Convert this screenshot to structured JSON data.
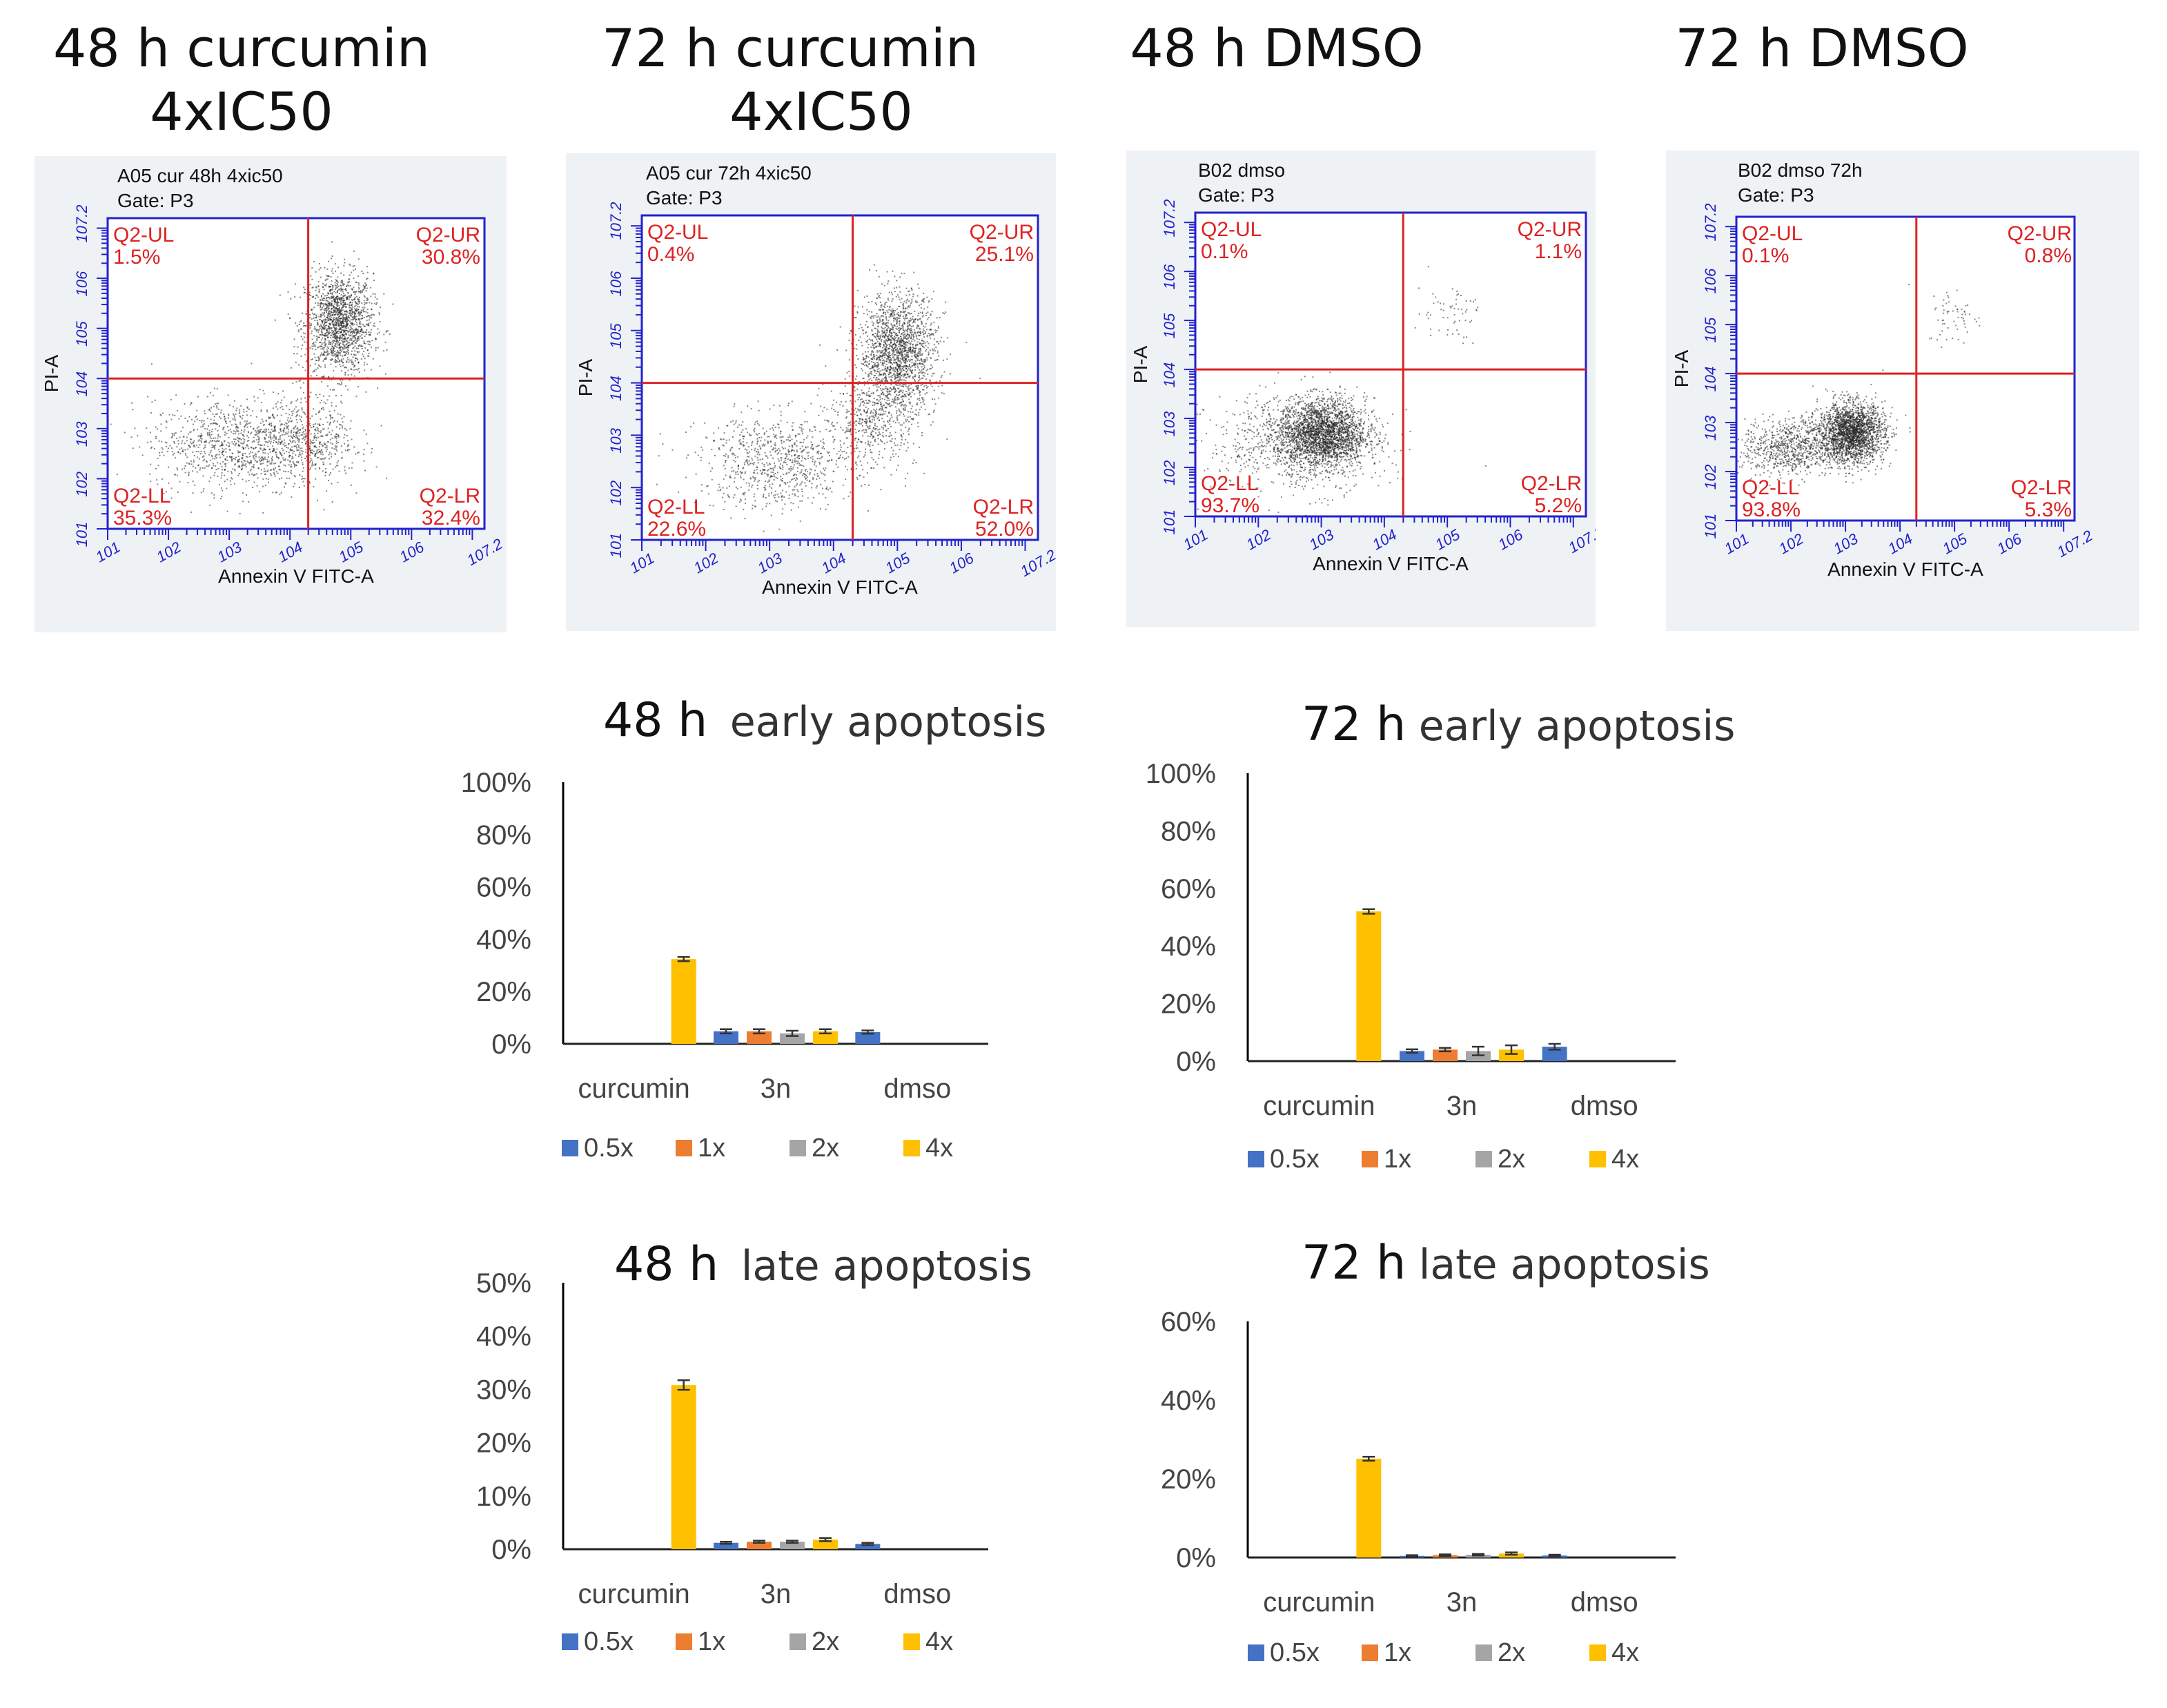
{
  "flow_panels": [
    {
      "header_line1": "48 h  curcumin",
      "header_line2": "4xIC50",
      "sample": "A05 cur 48h 4xic50",
      "gate": "Gate: P3",
      "xlabel": "Annexin V FITC-A",
      "ylabel": "PI-A",
      "quadrants": {
        "ul": {
          "label": "Q2-UL",
          "value": "1.5%"
        },
        "ur": {
          "label": "Q2-UR",
          "value": "30.8%"
        },
        "ll": {
          "label": "Q2-LL",
          "value": "35.3%"
        },
        "lr": {
          "label": "Q2-LR",
          "value": "32.4%"
        }
      },
      "gate_x_decade": 4.3,
      "gate_y_decade": 4.0,
      "populations": [
        {
          "cx": 4.8,
          "cy": 5.1,
          "sx": 0.28,
          "sy": 0.5,
          "n": 1600
        },
        {
          "cx": 3.1,
          "cy": 2.7,
          "sx": 0.7,
          "sy": 0.45,
          "n": 1000
        },
        {
          "cx": 4.3,
          "cy": 2.8,
          "sx": 0.4,
          "sy": 0.45,
          "n": 500
        }
      ]
    },
    {
      "header_line1": "72 h curcumin",
      "header_line2": "4xIC50",
      "sample": "A05 cur 72h 4xic50",
      "gate": "Gate: P3",
      "xlabel": "Annexin V FITC-A",
      "ylabel": "PI-A",
      "quadrants": {
        "ul": {
          "label": "Q2-UL",
          "value": "0.4%"
        },
        "ur": {
          "label": "Q2-UR",
          "value": "25.1%"
        },
        "ll": {
          "label": "Q2-LL",
          "value": "22.6%"
        },
        "lr": {
          "label": "Q2-LR",
          "value": "52.0%"
        }
      },
      "gate_x_decade": 4.3,
      "gate_y_decade": 4.0,
      "populations": [
        {
          "cx": 5.0,
          "cy": 4.6,
          "sx": 0.3,
          "sy": 0.55,
          "n": 1700
        },
        {
          "cx": 3.1,
          "cy": 2.5,
          "sx": 0.6,
          "sy": 0.45,
          "n": 800
        },
        {
          "cx": 4.6,
          "cy": 3.3,
          "sx": 0.35,
          "sy": 0.45,
          "n": 500
        }
      ]
    },
    {
      "header_line1": "48 h DMSO",
      "header_line2": "",
      "sample": "B02 dmso",
      "gate": "Gate: P3",
      "xlabel": "Annexin V FITC-A",
      "ylabel": "PI-A",
      "quadrants": {
        "ul": {
          "label": "Q2-UL",
          "value": "0.1%"
        },
        "ur": {
          "label": "Q2-UR",
          "value": "1.1%"
        },
        "ll": {
          "label": "Q2-LL",
          "value": "93.7%"
        },
        "lr": {
          "label": "Q2-LR",
          "value": "5.2%"
        }
      },
      "gate_x_decade": 4.3,
      "gate_y_decade": 4.0,
      "populations": [
        {
          "cx": 3.0,
          "cy": 2.7,
          "sx": 0.35,
          "sy": 0.35,
          "n": 2400
        },
        {
          "cx": 2.6,
          "cy": 2.5,
          "sx": 0.7,
          "sy": 0.5,
          "n": 700
        },
        {
          "cx": 5.0,
          "cy": 5.2,
          "sx": 0.25,
          "sy": 0.3,
          "n": 60
        }
      ]
    },
    {
      "header_line1": "72 h  DMSO",
      "header_line2": "",
      "sample": "B02 dmso 72h",
      "gate": "Gate: P3",
      "xlabel": "Annexin V FITC-A",
      "ylabel": "PI-A",
      "quadrants": {
        "ul": {
          "label": "Q2-UL",
          "value": "0.1%"
        },
        "ur": {
          "label": "Q2-UR",
          "value": "0.8%"
        },
        "ll": {
          "label": "Q2-LL",
          "value": "93.8%"
        },
        "lr": {
          "label": "Q2-LR",
          "value": "5.3%"
        }
      },
      "gate_x_decade": 4.3,
      "gate_y_decade": 4.0,
      "populations": [
        {
          "cx": 3.1,
          "cy": 2.8,
          "sx": 0.3,
          "sy": 0.3,
          "n": 2200
        },
        {
          "cx": 2.0,
          "cy": 2.5,
          "sx": 0.45,
          "sy": 0.3,
          "n": 800
        },
        {
          "cx": 5.0,
          "cy": 5.2,
          "sx": 0.25,
          "sy": 0.3,
          "n": 60
        }
      ]
    }
  ],
  "flow_axis": {
    "min": 1,
    "max": 7.2,
    "ticks": [
      "1",
      "2",
      "3",
      "4",
      "5",
      "6",
      "7.2"
    ]
  },
  "colors": {
    "flow_axis": "#2222cc",
    "flow_gate": "#dd2222",
    "flow_text": "#dd2222",
    "flow_panel_bg": "#eef2f4",
    "series": [
      "#4472c4",
      "#ed7d31",
      "#a5a5a5",
      "#ffc000"
    ]
  },
  "chart_data": [
    {
      "type": "bar",
      "heading": "48 h",
      "subtitle": "early apoptosis",
      "categories": [
        "curcumin",
        "3n",
        "dmso"
      ],
      "series": [
        {
          "name": "0.5x",
          "values": [
            null,
            4.8,
            4.5
          ]
        },
        {
          "name": "1x",
          "values": [
            null,
            4.8,
            null
          ]
        },
        {
          "name": "2x",
          "values": [
            null,
            4.0,
            null
          ]
        },
        {
          "name": "4x",
          "values": [
            32.4,
            4.8,
            null
          ]
        }
      ],
      "errors": [
        [
          null,
          0.8,
          0.6
        ],
        [
          null,
          0.8,
          null
        ],
        [
          null,
          1.0,
          null
        ],
        [
          0.8,
          0.8,
          null
        ]
      ],
      "ylim": [
        0,
        100
      ],
      "yticks": [
        0,
        20,
        40,
        60,
        80,
        100
      ],
      "ytick_labels": [
        "0%",
        "20%",
        "40%",
        "60%",
        "80%",
        "100%"
      ],
      "legend_position": "bottom"
    },
    {
      "type": "bar",
      "heading": "72 h",
      "subtitle": "early apoptosis",
      "categories": [
        "curcumin",
        "3n",
        "dmso"
      ],
      "series": [
        {
          "name": "0.5x",
          "values": [
            null,
            3.5,
            5.0
          ]
        },
        {
          "name": "1x",
          "values": [
            null,
            4.0,
            null
          ]
        },
        {
          "name": "2x",
          "values": [
            null,
            3.5,
            null
          ]
        },
        {
          "name": "4x",
          "values": [
            52.0,
            4.0,
            null
          ]
        }
      ],
      "errors": [
        [
          null,
          0.6,
          1.0
        ],
        [
          null,
          0.6,
          null
        ],
        [
          null,
          1.5,
          null
        ],
        [
          0.8,
          1.5,
          null
        ]
      ],
      "ylim": [
        0,
        100
      ],
      "yticks": [
        0,
        20,
        40,
        60,
        80,
        100
      ],
      "ytick_labels": [
        "0%",
        "20%",
        "40%",
        "60%",
        "80%",
        "100%"
      ],
      "legend_position": "bottom"
    },
    {
      "type": "bar",
      "heading": "48 h",
      "subtitle": "late apoptosis",
      "categories": [
        "curcumin",
        "3n",
        "dmso"
      ],
      "series": [
        {
          "name": "0.5x",
          "values": [
            null,
            1.2,
            1.0
          ]
        },
        {
          "name": "1x",
          "values": [
            null,
            1.4,
            null
          ]
        },
        {
          "name": "2x",
          "values": [
            null,
            1.4,
            null
          ]
        },
        {
          "name": "4x",
          "values": [
            30.8,
            1.8,
            null
          ]
        }
      ],
      "errors": [
        [
          null,
          0.2,
          0.2
        ],
        [
          null,
          0.2,
          null
        ],
        [
          null,
          0.2,
          null
        ],
        [
          0.9,
          0.3,
          null
        ]
      ],
      "ylim": [
        0,
        50
      ],
      "yticks": [
        0,
        10,
        20,
        30,
        40,
        50
      ],
      "ytick_labels": [
        "0%",
        "10%",
        "20%",
        "30%",
        "40%",
        "50%"
      ],
      "legend_position": "bottom"
    },
    {
      "type": "bar",
      "heading": "72 h",
      "subtitle": "late apoptosis",
      "categories": [
        "curcumin",
        "3n",
        "dmso"
      ],
      "series": [
        {
          "name": "0.5x",
          "values": [
            null,
            0.4,
            0.5
          ]
        },
        {
          "name": "1x",
          "values": [
            null,
            0.6,
            null
          ]
        },
        {
          "name": "2x",
          "values": [
            null,
            0.7,
            null
          ]
        },
        {
          "name": "4x",
          "values": [
            25.1,
            1.0,
            null
          ]
        }
      ],
      "errors": [
        [
          null,
          0.2,
          0.2
        ],
        [
          null,
          0.2,
          null
        ],
        [
          null,
          0.2,
          null
        ],
        [
          0.5,
          0.3,
          null
        ]
      ],
      "ylim": [
        0,
        60
      ],
      "yticks": [
        0,
        20,
        40,
        60
      ],
      "ytick_labels": [
        "0%",
        "20%",
        "40%",
        "60%"
      ],
      "legend_position": "bottom"
    }
  ]
}
